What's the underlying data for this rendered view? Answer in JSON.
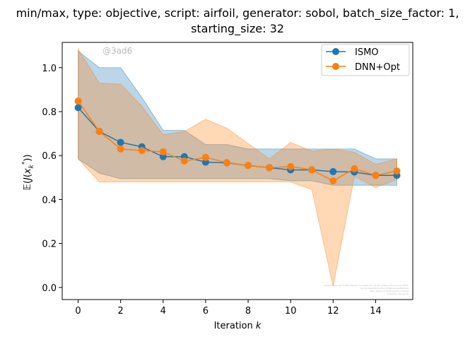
{
  "chart_data": {
    "type": "line",
    "title_line1": "min/max, type: objective, script: airfoil, generator: sobol, batch_size_factor: 1,",
    "title_line2": "starting_size: 32",
    "xlabel": "Iteration k",
    "ylabel": "E(J(x_k^*))",
    "xlim": [
      -0.75,
      15.75
    ],
    "ylim": [
      -0.055,
      1.115
    ],
    "xticks": [
      0,
      2,
      4,
      6,
      8,
      10,
      12,
      14
    ],
    "yticks": [
      0.0,
      0.2,
      0.4,
      0.6,
      0.8,
      1.0
    ],
    "xtick_labels": [
      "0",
      "2",
      "4",
      "6",
      "8",
      "10",
      "12",
      "14"
    ],
    "ytick_labels": [
      "0.0",
      "0.2",
      "0.4",
      "0.6",
      "0.8",
      "1.0"
    ],
    "legend_position": "top-right",
    "grid": false,
    "watermark": "@3ad6",
    "fineprint": [
      "By Kjetil Olsen Lye © 2020  objective: by fidelity  ismo  rendering  May 8 2019  commit fd8d8c",
      "Commit: 9a0e1f9c8c3e71a1b8d0b12b4e1e58b5d2fa",
      "Repo: github.com/kjetil-lye/ismo_airfoil.git",
      "Hostname: na-login-01"
    ],
    "x": [
      0,
      1,
      2,
      3,
      4,
      5,
      6,
      7,
      8,
      9,
      10,
      11,
      12,
      13,
      14,
      15
    ],
    "series": [
      {
        "name": "ISMO",
        "color": "#1f77b4",
        "values": [
          0.818,
          0.71,
          0.66,
          0.64,
          0.595,
          0.595,
          0.57,
          0.567,
          0.555,
          0.545,
          0.535,
          0.535,
          0.527,
          0.525,
          0.51,
          0.51
        ],
        "band_max": [
          1.075,
          1.0,
          1.0,
          0.865,
          0.715,
          0.715,
          0.65,
          0.65,
          0.63,
          0.63,
          0.63,
          0.63,
          0.63,
          0.63,
          0.585,
          0.585
        ],
        "band_min": [
          0.585,
          0.52,
          0.495,
          0.495,
          0.495,
          0.495,
          0.495,
          0.495,
          0.495,
          0.495,
          0.485,
          0.485,
          0.465,
          0.465,
          0.465,
          0.465
        ]
      },
      {
        "name": "DNN+Opt",
        "color": "#ff7f0e",
        "values": [
          0.848,
          0.71,
          0.63,
          0.623,
          0.617,
          0.575,
          0.592,
          0.568,
          0.555,
          0.545,
          0.55,
          0.535,
          0.485,
          0.54,
          0.51,
          0.53
        ],
        "band_max": [
          1.085,
          0.93,
          0.925,
          0.825,
          0.695,
          0.71,
          0.765,
          0.725,
          0.655,
          0.585,
          0.66,
          0.62,
          0.63,
          0.615,
          0.56,
          0.585
        ],
        "band_min": [
          0.585,
          0.48,
          0.48,
          0.48,
          0.48,
          0.48,
          0.48,
          0.48,
          0.48,
          0.48,
          0.48,
          0.445,
          0.005,
          0.505,
          0.455,
          0.49
        ]
      }
    ]
  }
}
